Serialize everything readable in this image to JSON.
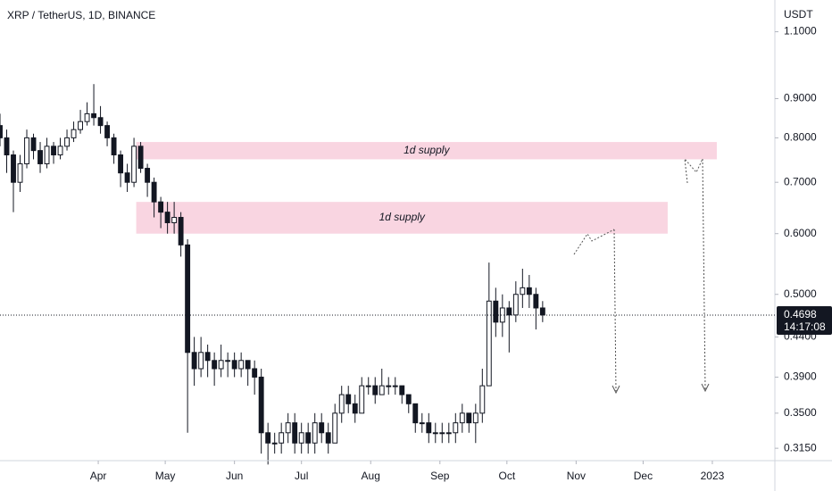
{
  "chart_data": {
    "type": "candlestick",
    "title": "XRP / TetherUS, 1D, BINANCE",
    "y_unit": "USDT",
    "log_scale": true,
    "up_color": "#ffffff",
    "down_color": "#131722",
    "wick_color": "#131722",
    "zone_color": "#f8cedc",
    "x": [
      "2022-02-16",
      "2022-02-19",
      "2022-02-22",
      "2022-02-25",
      "2022-02-28",
      "2022-03-03",
      "2022-03-06",
      "2022-03-09",
      "2022-03-12",
      "2022-03-15",
      "2022-03-18",
      "2022-03-21",
      "2022-03-24",
      "2022-03-27",
      "2022-03-30",
      "2022-04-02",
      "2022-04-05",
      "2022-04-08",
      "2022-04-11",
      "2022-04-14",
      "2022-04-17",
      "2022-04-20",
      "2022-04-23",
      "2022-04-26",
      "2022-04-29",
      "2022-05-02",
      "2022-05-05",
      "2022-05-08",
      "2022-05-11",
      "2022-05-14",
      "2022-05-17",
      "2022-05-20",
      "2022-05-23",
      "2022-05-26",
      "2022-05-29",
      "2022-06-01",
      "2022-06-04",
      "2022-06-07",
      "2022-06-10",
      "2022-06-13",
      "2022-06-16",
      "2022-06-19",
      "2022-06-22",
      "2022-06-25",
      "2022-06-28",
      "2022-07-01",
      "2022-07-04",
      "2022-07-07",
      "2022-07-10",
      "2022-07-13",
      "2022-07-16",
      "2022-07-19",
      "2022-07-22",
      "2022-07-25",
      "2022-07-28",
      "2022-07-31",
      "2022-08-03",
      "2022-08-06",
      "2022-08-09",
      "2022-08-12",
      "2022-08-15",
      "2022-08-18",
      "2022-08-21",
      "2022-08-24",
      "2022-08-27",
      "2022-08-30",
      "2022-09-02",
      "2022-09-05",
      "2022-09-08",
      "2022-09-11",
      "2022-09-14",
      "2022-09-17",
      "2022-09-20",
      "2022-09-23",
      "2022-09-26",
      "2022-09-29",
      "2022-10-02",
      "2022-10-05",
      "2022-10-08",
      "2022-10-11",
      "2022-10-14",
      "2022-10-17"
    ],
    "open": [
      0.83,
      0.8,
      0.76,
      0.7,
      0.74,
      0.8,
      0.77,
      0.74,
      0.78,
      0.76,
      0.78,
      0.8,
      0.82,
      0.84,
      0.86,
      0.85,
      0.83,
      0.8,
      0.76,
      0.72,
      0.7,
      0.78,
      0.73,
      0.7,
      0.66,
      0.64,
      0.62,
      0.63,
      0.58,
      0.42,
      0.4,
      0.42,
      0.41,
      0.4,
      0.41,
      0.41,
      0.4,
      0.41,
      0.4,
      0.39,
      0.33,
      0.32,
      0.32,
      0.33,
      0.34,
      0.32,
      0.33,
      0.32,
      0.34,
      0.33,
      0.32,
      0.35,
      0.37,
      0.36,
      0.35,
      0.38,
      0.38,
      0.37,
      0.38,
      0.38,
      0.38,
      0.37,
      0.36,
      0.34,
      0.34,
      0.33,
      0.33,
      0.33,
      0.33,
      0.34,
      0.35,
      0.34,
      0.35,
      0.38,
      0.49,
      0.46,
      0.48,
      0.47,
      0.5,
      0.51,
      0.5,
      0.48
    ],
    "high": [
      0.86,
      0.82,
      0.77,
      0.76,
      0.82,
      0.81,
      0.79,
      0.8,
      0.79,
      0.8,
      0.82,
      0.84,
      0.87,
      0.89,
      0.94,
      0.88,
      0.84,
      0.81,
      0.77,
      0.74,
      0.8,
      0.79,
      0.74,
      0.71,
      0.67,
      0.66,
      0.66,
      0.64,
      0.59,
      0.44,
      0.44,
      0.43,
      0.42,
      0.43,
      0.42,
      0.42,
      0.42,
      0.41,
      0.41,
      0.4,
      0.34,
      0.33,
      0.34,
      0.35,
      0.35,
      0.34,
      0.34,
      0.35,
      0.35,
      0.34,
      0.36,
      0.38,
      0.38,
      0.37,
      0.39,
      0.39,
      0.39,
      0.4,
      0.39,
      0.39,
      0.38,
      0.37,
      0.36,
      0.35,
      0.35,
      0.34,
      0.34,
      0.34,
      0.35,
      0.36,
      0.35,
      0.36,
      0.4,
      0.55,
      0.51,
      0.5,
      0.49,
      0.52,
      0.54,
      0.53,
      0.51,
      0.49
    ],
    "low": [
      0.78,
      0.72,
      0.64,
      0.68,
      0.73,
      0.75,
      0.72,
      0.73,
      0.74,
      0.75,
      0.77,
      0.79,
      0.81,
      0.83,
      0.83,
      0.81,
      0.78,
      0.74,
      0.69,
      0.68,
      0.69,
      0.72,
      0.67,
      0.63,
      0.61,
      0.6,
      0.6,
      0.56,
      0.33,
      0.38,
      0.39,
      0.39,
      0.38,
      0.39,
      0.39,
      0.39,
      0.39,
      0.38,
      0.37,
      0.31,
      0.3,
      0.31,
      0.31,
      0.32,
      0.31,
      0.31,
      0.31,
      0.31,
      0.32,
      0.31,
      0.32,
      0.34,
      0.35,
      0.34,
      0.35,
      0.37,
      0.36,
      0.37,
      0.37,
      0.37,
      0.36,
      0.35,
      0.33,
      0.33,
      0.32,
      0.32,
      0.32,
      0.32,
      0.32,
      0.33,
      0.33,
      0.32,
      0.34,
      0.38,
      0.44,
      0.44,
      0.42,
      0.46,
      0.48,
      0.48,
      0.45,
      0.46
    ],
    "close": [
      0.8,
      0.76,
      0.7,
      0.74,
      0.8,
      0.77,
      0.74,
      0.78,
      0.76,
      0.78,
      0.8,
      0.82,
      0.84,
      0.86,
      0.85,
      0.83,
      0.8,
      0.76,
      0.72,
      0.7,
      0.78,
      0.73,
      0.7,
      0.66,
      0.64,
      0.62,
      0.63,
      0.58,
      0.42,
      0.4,
      0.42,
      0.41,
      0.4,
      0.41,
      0.41,
      0.4,
      0.41,
      0.4,
      0.39,
      0.33,
      0.32,
      0.32,
      0.33,
      0.34,
      0.32,
      0.33,
      0.32,
      0.34,
      0.33,
      0.32,
      0.35,
      0.37,
      0.36,
      0.35,
      0.38,
      0.38,
      0.37,
      0.38,
      0.38,
      0.38,
      0.37,
      0.36,
      0.34,
      0.34,
      0.33,
      0.33,
      0.33,
      0.33,
      0.34,
      0.35,
      0.34,
      0.35,
      0.38,
      0.49,
      0.46,
      0.48,
      0.47,
      0.5,
      0.51,
      0.5,
      0.48,
      0.47
    ],
    "xlim": [
      "2022-02-16",
      "2023-01-29"
    ],
    "xticks": [
      {
        "value": "2022-04-01",
        "label": "Apr"
      },
      {
        "value": "2022-05-01",
        "label": "May"
      },
      {
        "value": "2022-06-01",
        "label": "Jun"
      },
      {
        "value": "2022-07-01",
        "label": "Jul"
      },
      {
        "value": "2022-08-01",
        "label": "Aug"
      },
      {
        "value": "2022-09-01",
        "label": "Sep"
      },
      {
        "value": "2022-10-01",
        "label": "Oct"
      },
      {
        "value": "2022-11-01",
        "label": "Nov"
      },
      {
        "value": "2022-12-01",
        "label": "Dec"
      },
      {
        "value": "2023-01-01",
        "label": "2023"
      }
    ],
    "ylim": [
      0.3035,
      1.21
    ],
    "yticks": [
      {
        "value": 1.1,
        "label": "1.1000"
      },
      {
        "value": 0.9,
        "label": "0.9000"
      },
      {
        "value": 0.8,
        "label": "0.8000"
      },
      {
        "value": 0.7,
        "label": "0.7000"
      },
      {
        "value": 0.6,
        "label": "0.6000"
      },
      {
        "value": 0.5,
        "label": "0.5000"
      },
      {
        "value": 0.44,
        "label": "0.4400"
      },
      {
        "value": 0.39,
        "label": "0.3900"
      },
      {
        "value": 0.35,
        "label": "0.3500"
      },
      {
        "value": 0.315,
        "label": "0.3150"
      }
    ],
    "last_price": 0.4698,
    "countdown": "14:17:08",
    "zones": [
      {
        "text": "1d supply",
        "top": 0.79,
        "bottom": 0.75,
        "start": "2022-04-18",
        "end": "2023-01-03"
      },
      {
        "text": "1d supply",
        "top": 0.66,
        "bottom": 0.6,
        "start": "2022-04-18",
        "end": "2022-12-12"
      }
    ]
  }
}
